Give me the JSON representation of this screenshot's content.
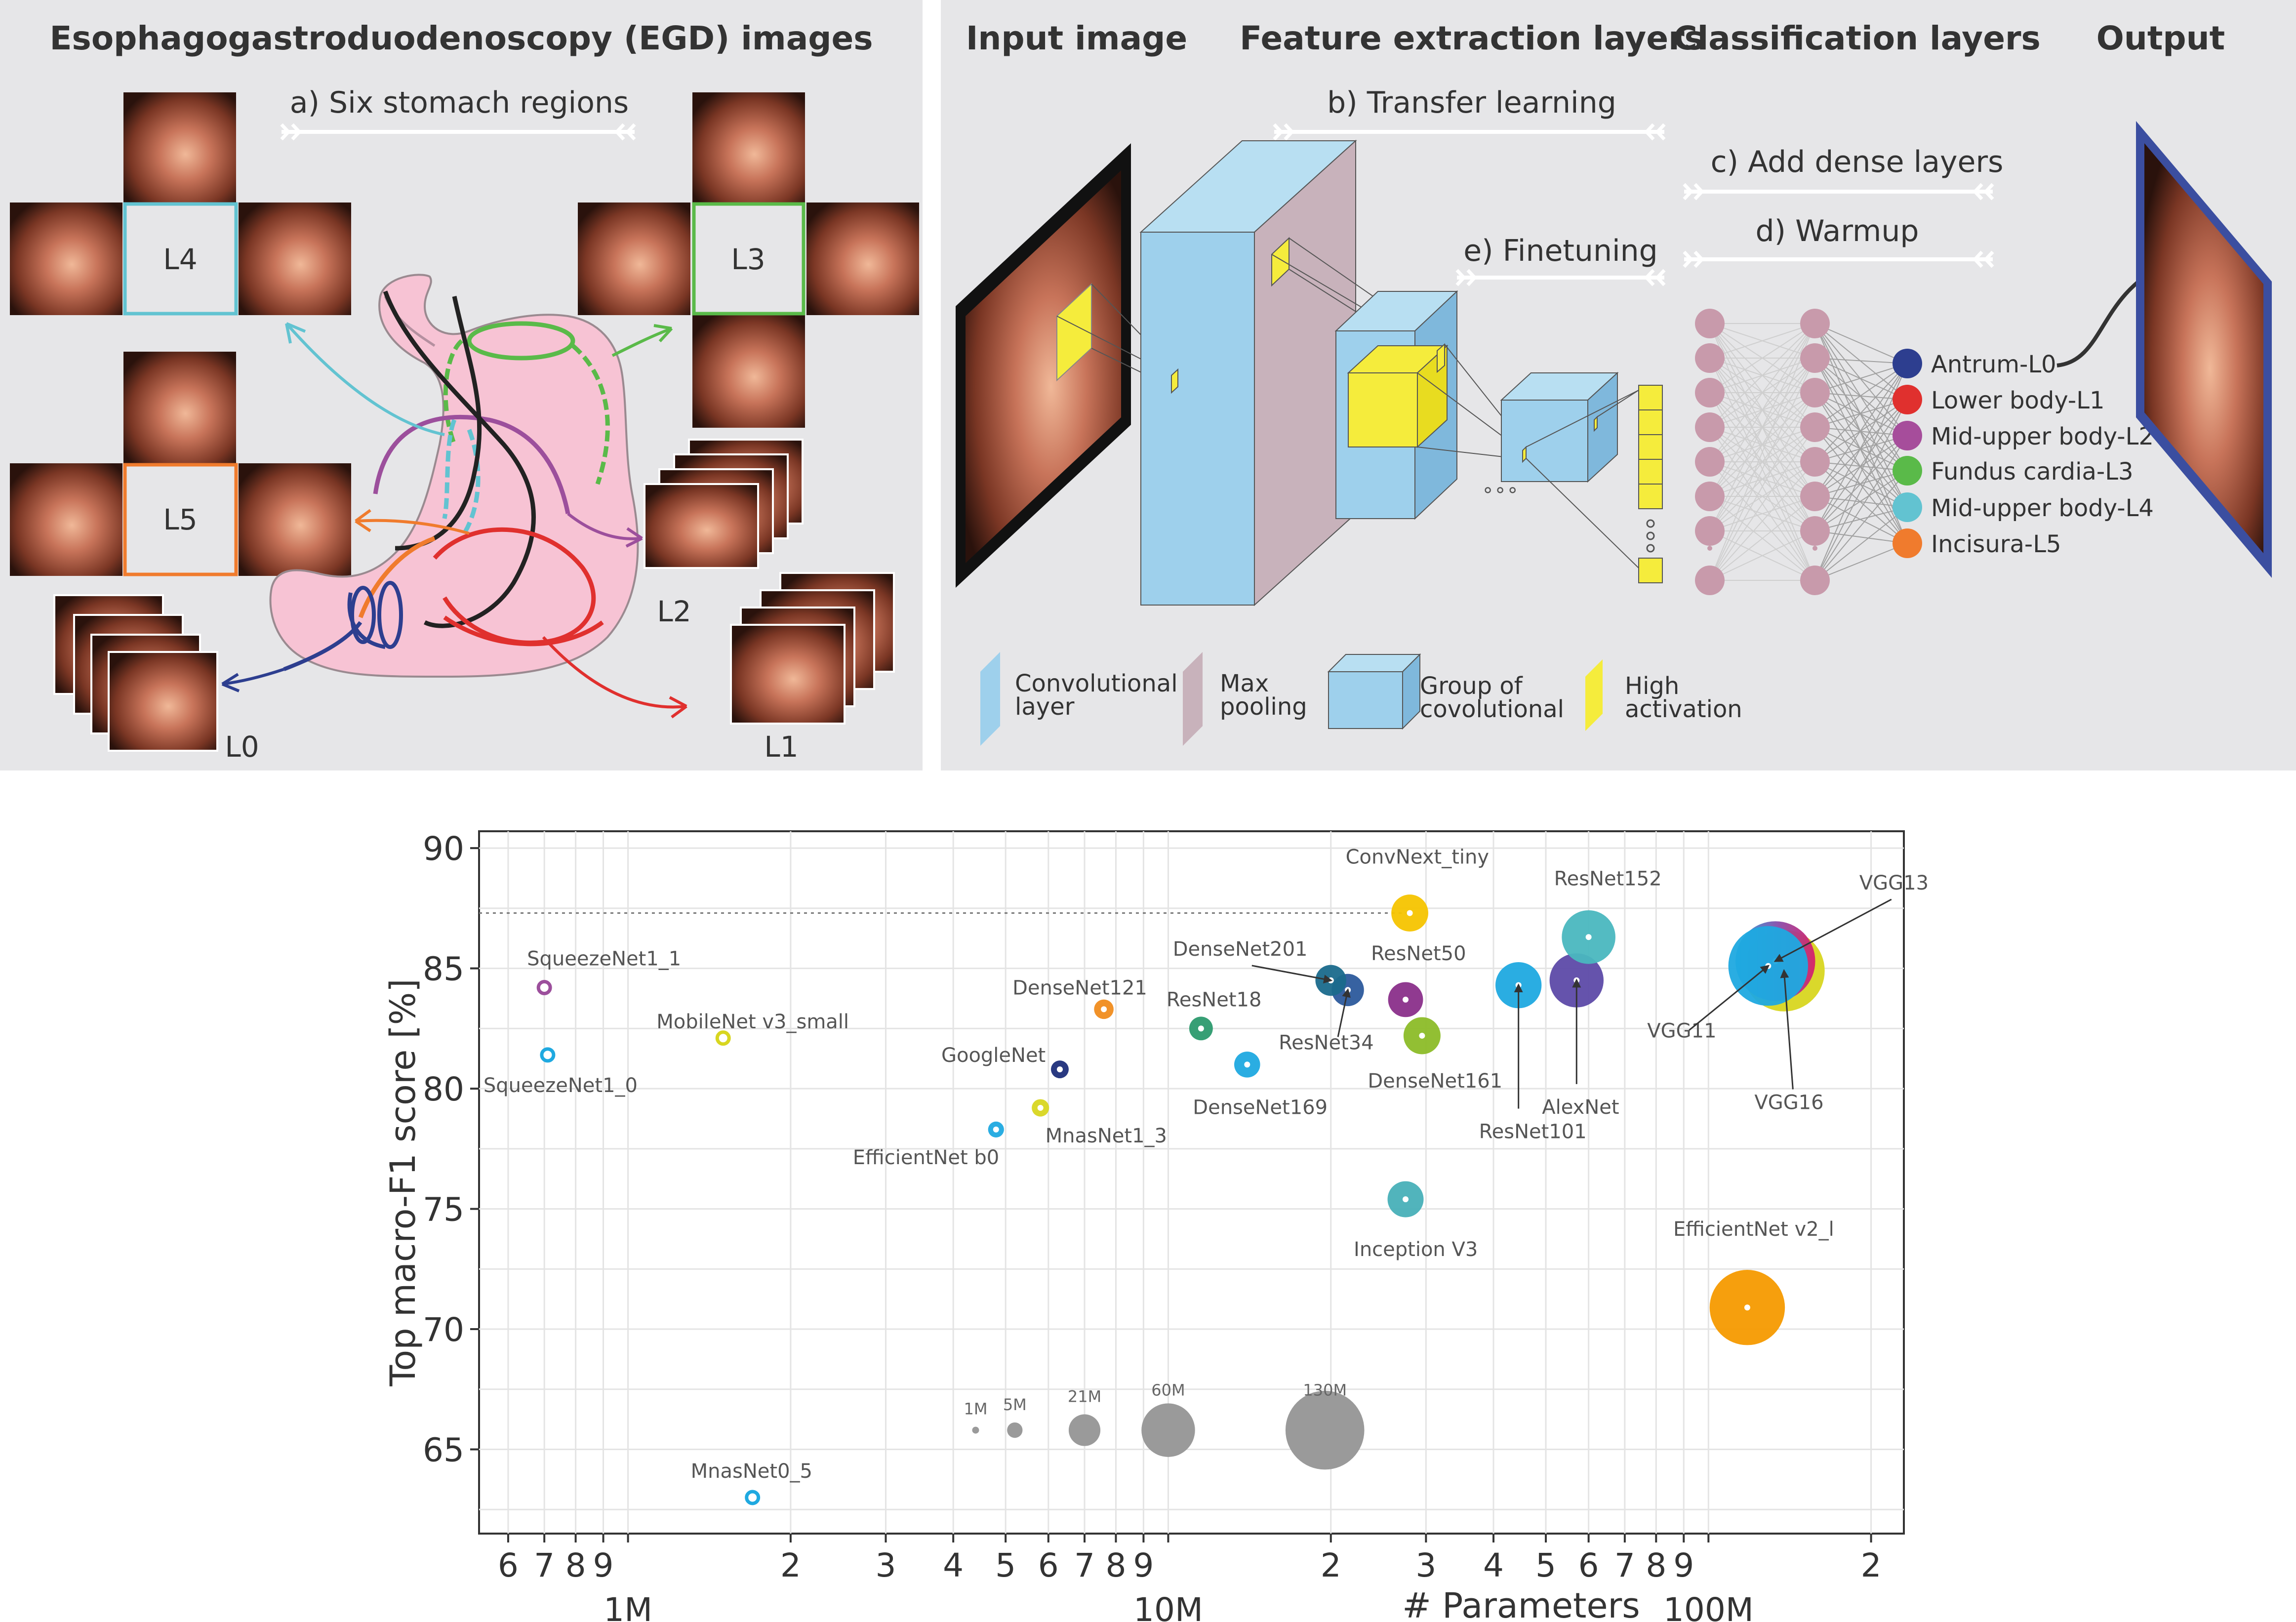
{
  "colors": {
    "panel_bg": "#e6e6e8",
    "stomach_fill": "#f7c3d4",
    "conv_layer": "#9ed0ec",
    "max_pool": "#c8b2bb",
    "activation": "#f5ec3c",
    "node": "#c89aab",
    "output_frame": "#3b4ea0"
  },
  "panel_left": {
    "title": "Esophagogastroduodenoscopy (EGD) images",
    "subtitle": "a) Six stomach regions",
    "regions": [
      {
        "label": "L4",
        "color": "#62c3d1"
      },
      {
        "label": "L3",
        "color": "#5aba49"
      },
      {
        "label": "L5",
        "color": "#f07b2d"
      },
      {
        "label": "L2",
        "color": "#9c4f9c"
      },
      {
        "label": "L0",
        "color": "#2d3e8f"
      },
      {
        "label": "L1",
        "color": "#e0302e"
      }
    ]
  },
  "panel_right": {
    "headers": [
      "Input image",
      "Feature extraction layers",
      "Classification layers",
      "Output"
    ],
    "steps": [
      "b) Transfer learning",
      "c) Add dense layers",
      "e) Finetuning",
      "d) Warmup"
    ],
    "classes": [
      {
        "label": "Antrum-L0",
        "color": "#2d3e8f"
      },
      {
        "label": "Lower body-L1",
        "color": "#e0302e"
      },
      {
        "label": "Mid-upper body-L2",
        "color": "#a64d9b"
      },
      {
        "label": "Fundus cardia-L3",
        "color": "#5aba49"
      },
      {
        "label": "Mid-upper body-L4",
        "color": "#62c3d1"
      },
      {
        "label": "Incisura-L5",
        "color": "#f07b2d"
      }
    ],
    "legend": [
      {
        "line1": "Convolutional",
        "line2": "layer"
      },
      {
        "line1": "Max",
        "line2": "pooling"
      },
      {
        "line1": "Group of",
        "line2": "covolutional"
      },
      {
        "line1": "High",
        "line2": "activation"
      }
    ]
  },
  "chart_data": {
    "type": "scatter",
    "xlabel": "# Parameters",
    "ylabel": "Top macro-F1 score [%]",
    "x_scale": "log",
    "xlim": [
      530000,
      230000000
    ],
    "ylim": [
      61.5,
      90.7
    ],
    "yticks": [
      65,
      70,
      75,
      80,
      85,
      90
    ],
    "xticks_minor": [
      {
        "v": 600000,
        "label": "6"
      },
      {
        "v": 700000,
        "label": "7"
      },
      {
        "v": 800000,
        "label": "8"
      },
      {
        "v": 900000,
        "label": "9"
      },
      {
        "v": 2000000,
        "label": "2"
      },
      {
        "v": 3000000,
        "label": "3"
      },
      {
        "v": 4000000,
        "label": "4"
      },
      {
        "v": 5000000,
        "label": "5"
      },
      {
        "v": 6000000,
        "label": "6"
      },
      {
        "v": 7000000,
        "label": "7"
      },
      {
        "v": 8000000,
        "label": "8"
      },
      {
        "v": 9000000,
        "label": "9"
      },
      {
        "v": 20000000,
        "label": "2"
      },
      {
        "v": 30000000,
        "label": "3"
      },
      {
        "v": 40000000,
        "label": "4"
      },
      {
        "v": 50000000,
        "label": "5"
      },
      {
        "v": 60000000,
        "label": "6"
      },
      {
        "v": 70000000,
        "label": "7"
      },
      {
        "v": 80000000,
        "label": "8"
      },
      {
        "v": 90000000,
        "label": "9"
      },
      {
        "v": 200000000,
        "label": "2"
      }
    ],
    "xticks_major": [
      {
        "v": 1000000,
        "label": "1M"
      },
      {
        "v": 10000000,
        "label": "10M"
      },
      {
        "v": 100000000,
        "label": "100M"
      }
    ],
    "reference_line_y": 87.3,
    "grid": true,
    "points": [
      {
        "name": "SqueezeNet1_1",
        "x": 700000,
        "y": 84.2,
        "color": "#9c4f9c",
        "size_m": 1.2
      },
      {
        "name": "SqueezeNet1_0",
        "x": 710000,
        "y": 81.4,
        "color": "#1fa9e0",
        "size_m": 1.2
      },
      {
        "name": "MobileNet v3_small",
        "x": 1500000,
        "y": 82.1,
        "color": "#d8d620",
        "size_m": 2.5
      },
      {
        "name": "MnasNet0_5",
        "x": 1700000,
        "y": 63.0,
        "color": "#1fa9e0",
        "size_m": 2.2
      },
      {
        "name": "EfficientNet b0",
        "x": 4800000,
        "y": 78.3,
        "color": "#1fa9e0",
        "size_m": 5.3
      },
      {
        "name": "MnasNet1_3",
        "x": 5800000,
        "y": 79.2,
        "color": "#d8d620",
        "size_m": 6.3
      },
      {
        "name": "GoogleNet",
        "x": 6300000,
        "y": 80.8,
        "color": "#1d2e7a",
        "size_m": 6.6
      },
      {
        "name": "DenseNet121",
        "x": 7600000,
        "y": 83.3,
        "color": "#f08c1e",
        "size_m": 8.0
      },
      {
        "name": "ResNet18",
        "x": 11500000,
        "y": 82.5,
        "color": "#2c9a6e",
        "size_m": 11.7
      },
      {
        "name": "DenseNet169",
        "x": 14000000,
        "y": 81.0,
        "color": "#1fa9e0",
        "size_m": 14.1
      },
      {
        "name": "DenseNet201",
        "x": 20000000,
        "y": 84.5,
        "color": "#1a6a8c",
        "size_m": 20.0
      },
      {
        "name": "ResNet34",
        "x": 21500000,
        "y": 84.1,
        "color": "#2c5a9c",
        "size_m": 21.8
      },
      {
        "name": "ConvNext_tiny",
        "x": 28000000,
        "y": 87.3,
        "color": "#f5c400",
        "size_m": 28.6
      },
      {
        "name": "ResNet50",
        "x": 27500000,
        "y": 83.7,
        "color": "#8a2f8a",
        "size_m": 25.6
      },
      {
        "name": "DenseNet161",
        "x": 29500000,
        "y": 82.2,
        "color": "#8cbc28",
        "size_m": 28.7
      },
      {
        "name": "Inception V3",
        "x": 27500000,
        "y": 75.4,
        "color": "#48b0b8",
        "size_m": 27.2
      },
      {
        "name": "ResNet101",
        "x": 44500000,
        "y": 84.3,
        "color": "#1fa9e0",
        "size_m": 44.5
      },
      {
        "name": "AlexNet",
        "x": 57000000,
        "y": 84.5,
        "color": "#5d4aa8",
        "size_m": 61.1
      },
      {
        "name": "ResNet152",
        "x": 60000000,
        "y": 86.3,
        "color": "#4ab7bf",
        "size_m": 60.2
      },
      {
        "name": "VGG16",
        "x": 138000000,
        "y": 84.9,
        "color": "#d8d620",
        "size_m": 138.4
      },
      {
        "name": "VGG13",
        "x": 133000000,
        "y": 85.3,
        "color": "#c03a8c",
        "size_m": 133.0
      },
      {
        "name": "VGG11",
        "x": 129000000,
        "y": 85.1,
        "color": "#1fa9e0",
        "size_m": 132.9
      },
      {
        "name": "EfficientNet v2_l",
        "x": 118000000,
        "y": 70.9,
        "color": "#f59a00",
        "size_m": 118.5
      }
    ],
    "size_legend": [
      {
        "label": "1M",
        "x": 4400000,
        "size_m": 1
      },
      {
        "label": "5M",
        "x": 5200000,
        "size_m": 5
      },
      {
        "label": "21M",
        "x": 7000000,
        "size_m": 21
      },
      {
        "label": "60M",
        "x": 10000000,
        "size_m": 60
      },
      {
        "label": "130M",
        "x": 19500000,
        "size_m": 130
      }
    ],
    "size_legend_y": 65.8,
    "size_color": "#9a9a9a"
  }
}
